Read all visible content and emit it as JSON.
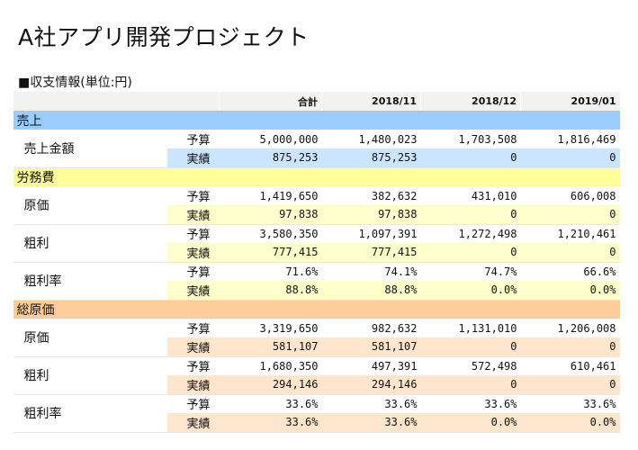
{
  "page_title": "A社アプリ開発プロジェクト",
  "section_title": "■収支情報(単位:円)",
  "columns": [
    "",
    "",
    "合計",
    "2018/11",
    "2018/12",
    "2019/01"
  ],
  "colors": {
    "blue_header": "#99ccff",
    "blue_actual": "#cce5ff",
    "yellow_header": "#ffff99",
    "yellow_actual": "#ffffcc",
    "orange_header": "#ffcc99",
    "orange_actual": "#ffe5cc"
  },
  "sections": [
    {
      "name": "売上",
      "theme": "blue",
      "items": [
        {
          "label": "売上金額",
          "rows": [
            {
              "type": "予算",
              "values": [
                "5,000,000",
                "1,480,023",
                "1,703,508",
                "1,816,469"
              ]
            },
            {
              "type": "実績",
              "values": [
                "875,253",
                "875,253",
                "0",
                "0"
              ]
            }
          ]
        }
      ]
    },
    {
      "name": "労務費",
      "theme": "yellow",
      "items": [
        {
          "label": "原価",
          "rows": [
            {
              "type": "予算",
              "values": [
                "1,419,650",
                "382,632",
                "431,010",
                "606,008"
              ]
            },
            {
              "type": "実績",
              "values": [
                "97,838",
                "97,838",
                "0",
                "0"
              ]
            }
          ]
        },
        {
          "label": "粗利",
          "rows": [
            {
              "type": "予算",
              "values": [
                "3,580,350",
                "1,097,391",
                "1,272,498",
                "1,210,461"
              ]
            },
            {
              "type": "実績",
              "values": [
                "777,415",
                "777,415",
                "0",
                "0"
              ]
            }
          ]
        },
        {
          "label": "粗利率",
          "rows": [
            {
              "type": "予算",
              "values": [
                "71.6%",
                "74.1%",
                "74.7%",
                "66.6%"
              ]
            },
            {
              "type": "実績",
              "values": [
                "88.8%",
                "88.8%",
                "0.0%",
                "0.0%"
              ]
            }
          ]
        }
      ]
    },
    {
      "name": "総原価",
      "theme": "orange",
      "items": [
        {
          "label": "原価",
          "rows": [
            {
              "type": "予算",
              "values": [
                "3,319,650",
                "982,632",
                "1,131,010",
                "1,206,008"
              ]
            },
            {
              "type": "実績",
              "values": [
                "581,107",
                "581,107",
                "0",
                "0"
              ]
            }
          ]
        },
        {
          "label": "粗利",
          "rows": [
            {
              "type": "予算",
              "values": [
                "1,680,350",
                "497,391",
                "572,498",
                "610,461"
              ]
            },
            {
              "type": "実績",
              "values": [
                "294,146",
                "294,146",
                "0",
                "0"
              ]
            }
          ]
        },
        {
          "label": "粗利率",
          "rows": [
            {
              "type": "予算",
              "values": [
                "33.6%",
                "33.6%",
                "33.6%",
                "33.6%"
              ]
            },
            {
              "type": "実績",
              "values": [
                "33.6%",
                "33.6%",
                "0.0%",
                "0.0%"
              ]
            }
          ]
        }
      ]
    }
  ]
}
